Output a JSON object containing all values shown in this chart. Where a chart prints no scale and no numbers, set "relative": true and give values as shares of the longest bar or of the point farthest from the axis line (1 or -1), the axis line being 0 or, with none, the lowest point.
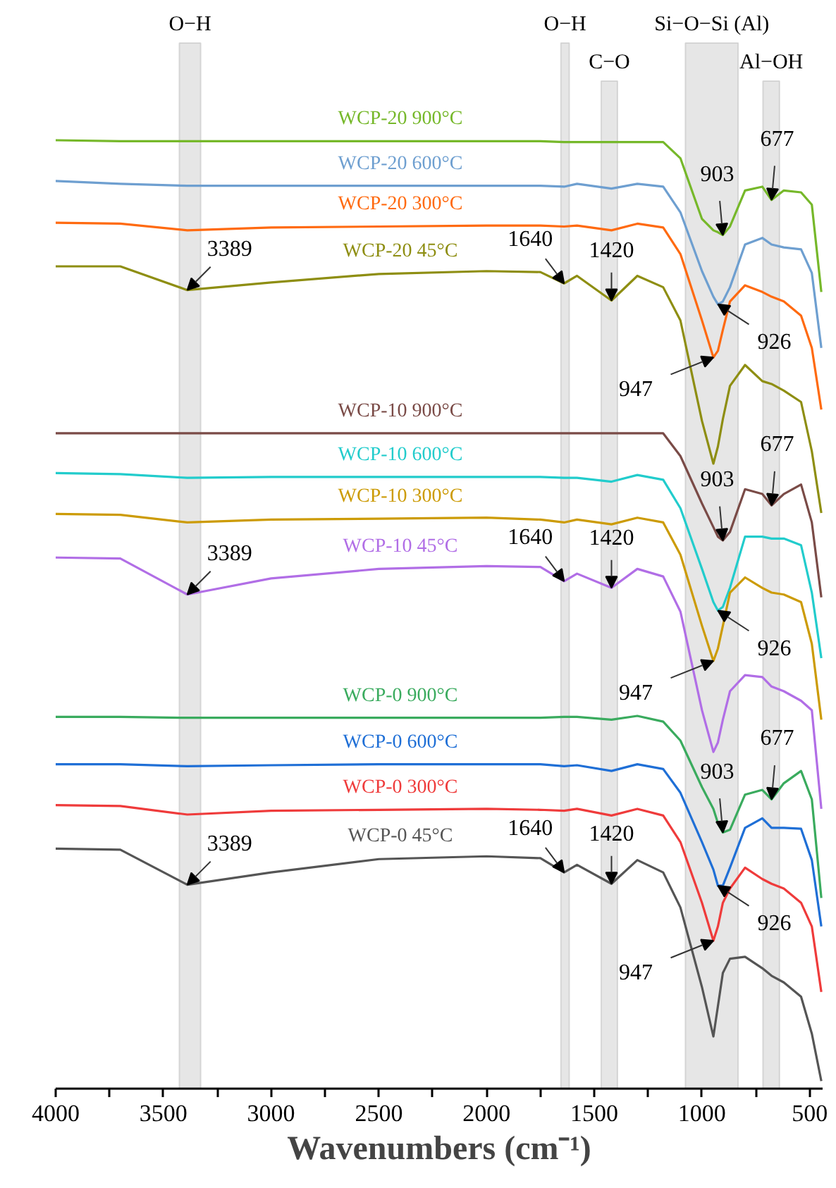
{
  "chart_data": {
    "type": "line",
    "relative": true,
    "xlabel": "Wavenumbers (cm⁻¹)",
    "xlim": [
      4000,
      440
    ],
    "xticks": [
      4000,
      {
        "value": 3750,
        "label": null
      },
      3500,
      {
        "value": 3250,
        "label": null
      },
      3000,
      {
        "value": 2750,
        "label": null
      },
      2500,
      {
        "value": 2250,
        "label": null
      },
      2000,
      {
        "value": 1750,
        "label": null
      },
      1500,
      {
        "value": 1250,
        "label": null
      },
      1000,
      {
        "value": 750,
        "label": null
      },
      500
    ],
    "x": [
      4000,
      3700,
      3389,
      3000,
      2500,
      2000,
      1750,
      1640,
      1580,
      1420,
      1300,
      1180,
      1100,
      1000,
      947,
      926,
      903,
      870,
      800,
      720,
      677,
      620,
      540,
      490,
      446
    ],
    "series": [
      {
        "name": "WCP-20 900°C",
        "color": "#76b82a",
        "values": [
          1.0,
          0.999,
          0.999,
          0.999,
          0.999,
          0.999,
          0.999,
          0.998,
          0.998,
          0.998,
          0.998,
          0.998,
          0.981,
          0.917,
          0.905,
          0.903,
          0.9,
          0.909,
          0.947,
          0.951,
          0.937,
          0.947,
          0.945,
          0.932,
          0.84
        ]
      },
      {
        "name": "WCP-20 600°C",
        "color": "#6e9fd0",
        "values": [
          0.957,
          0.954,
          0.952,
          0.952,
          0.952,
          0.952,
          0.952,
          0.951,
          0.954,
          0.949,
          0.954,
          0.951,
          0.924,
          0.862,
          0.835,
          0.827,
          0.83,
          0.845,
          0.89,
          0.897,
          0.89,
          0.887,
          0.885,
          0.86,
          0.781
        ]
      },
      {
        "name": "WCP-20 300°C",
        "color": "#ff6a10",
        "values": [
          0.913,
          0.912,
          0.905,
          0.908,
          0.909,
          0.91,
          0.91,
          0.909,
          0.91,
          0.905,
          0.912,
          0.908,
          0.88,
          0.81,
          0.771,
          0.778,
          0.8,
          0.83,
          0.847,
          0.84,
          0.835,
          0.83,
          0.815,
          0.781,
          0.716
        ]
      },
      {
        "name": "WCP-20 45°C",
        "color": "#8e8e12",
        "values": [
          0.867,
          0.867,
          0.842,
          0.85,
          0.859,
          0.862,
          0.861,
          0.849,
          0.857,
          0.831,
          0.857,
          0.845,
          0.81,
          0.704,
          0.659,
          0.677,
          0.706,
          0.741,
          0.763,
          0.746,
          0.743,
          0.736,
          0.724,
          0.672,
          0.607
        ]
      },
      {
        "name": "WCP-10 900°C",
        "color": "#7a4b47",
        "values": [
          0.691,
          0.691,
          0.691,
          0.691,
          0.691,
          0.691,
          0.691,
          0.691,
          0.691,
          0.691,
          0.691,
          0.691,
          0.667,
          0.617,
          0.592,
          0.582,
          0.578,
          0.587,
          0.632,
          0.627,
          0.615,
          0.627,
          0.637,
          0.597,
          0.518
        ]
      },
      {
        "name": "WCP-10 600°C",
        "color": "#22cccc",
        "values": [
          0.649,
          0.648,
          0.644,
          0.645,
          0.645,
          0.645,
          0.645,
          0.644,
          0.644,
          0.64,
          0.647,
          0.642,
          0.612,
          0.548,
          0.513,
          0.504,
          0.508,
          0.528,
          0.582,
          0.582,
          0.58,
          0.58,
          0.573,
          0.523,
          0.454
        ]
      },
      {
        "name": "WCP-10 300°C",
        "color": "#cc9b06",
        "values": [
          0.606,
          0.605,
          0.597,
          0.6,
          0.601,
          0.602,
          0.6,
          0.597,
          0.6,
          0.595,
          0.602,
          0.597,
          0.563,
          0.488,
          0.451,
          0.464,
          0.488,
          0.523,
          0.539,
          0.528,
          0.523,
          0.521,
          0.513,
          0.469,
          0.389
        ]
      },
      {
        "name": "WCP-10 45°C",
        "color": "#b16ee6",
        "values": [
          0.56,
          0.559,
          0.521,
          0.538,
          0.548,
          0.551,
          0.55,
          0.535,
          0.543,
          0.528,
          0.548,
          0.54,
          0.503,
          0.399,
          0.355,
          0.365,
          0.389,
          0.419,
          0.436,
          0.434,
          0.424,
          0.419,
          0.409,
          0.399,
          0.295
        ]
      },
      {
        "name": "WCP-0 900°C",
        "color": "#3aab5e",
        "values": [
          0.392,
          0.392,
          0.391,
          0.391,
          0.391,
          0.391,
          0.391,
          0.392,
          0.392,
          0.389,
          0.393,
          0.387,
          0.367,
          0.318,
          0.295,
          0.28,
          0.27,
          0.273,
          0.31,
          0.315,
          0.305,
          0.322,
          0.335,
          0.305,
          0.201
        ]
      },
      {
        "name": "WCP-0 600°C",
        "color": "#1f6fd6",
        "values": [
          0.342,
          0.342,
          0.34,
          0.341,
          0.342,
          0.342,
          0.342,
          0.34,
          0.341,
          0.335,
          0.342,
          0.337,
          0.312,
          0.26,
          0.231,
          0.214,
          0.214,
          0.233,
          0.275,
          0.285,
          0.275,
          0.275,
          0.274,
          0.241,
          0.171
        ]
      },
      {
        "name": "WCP-0 300°C",
        "color": "#ef3b3b",
        "values": [
          0.299,
          0.298,
          0.289,
          0.293,
          0.294,
          0.295,
          0.294,
          0.293,
          0.295,
          0.288,
          0.295,
          0.288,
          0.26,
          0.196,
          0.156,
          0.171,
          0.196,
          0.211,
          0.233,
          0.221,
          0.216,
          0.211,
          0.196,
          0.171,
          0.102
        ]
      },
      {
        "name": "WCP-0 45°C",
        "color": "#555555",
        "values": [
          0.253,
          0.252,
          0.215,
          0.228,
          0.242,
          0.245,
          0.243,
          0.228,
          0.236,
          0.216,
          0.241,
          0.228,
          0.191,
          0.107,
          0.055,
          0.087,
          0.122,
          0.137,
          0.139,
          0.127,
          0.119,
          0.112,
          0.097,
          0.058,
          0.008
        ]
      }
    ],
    "bands": [
      {
        "axis": "x",
        "from": 3426,
        "to": 3327,
        "label": "O−H",
        "color": "#e6e6e6"
      },
      {
        "axis": "x",
        "from": 1655,
        "to": 1616,
        "label": "O−H",
        "color": "#e6e6e6"
      },
      {
        "axis": "x",
        "from": 1468,
        "to": 1392,
        "label": "C−O",
        "color": "#e6e6e6"
      },
      {
        "axis": "x",
        "from": 1077,
        "to": 832,
        "label": "Si−O−Si (Al)",
        "color": "#e6e6e6"
      },
      {
        "axis": "x",
        "from": 717,
        "to": 640,
        "label": "Al−OH",
        "color": "#e6e6e6"
      }
    ],
    "annotations": [
      {
        "text": "3389",
        "x": 3389,
        "y": 0.842
      },
      {
        "text": "3389",
        "x": 3389,
        "y": 0.521
      },
      {
        "text": "3389",
        "x": 3389,
        "y": 0.215
      },
      {
        "text": "1640",
        "x": 1640,
        "y": 0.849
      },
      {
        "text": "1640",
        "x": 1640,
        "y": 0.535
      },
      {
        "text": "1640",
        "x": 1640,
        "y": 0.228
      },
      {
        "text": "1420",
        "x": 1420,
        "y": 0.831
      },
      {
        "text": "1420",
        "x": 1420,
        "y": 0.528
      },
      {
        "text": "1420",
        "x": 1420,
        "y": 0.216
      },
      {
        "text": "903",
        "x": 903,
        "y": 0.9
      },
      {
        "text": "903",
        "x": 903,
        "y": 0.578
      },
      {
        "text": "903",
        "x": 903,
        "y": 0.27
      },
      {
        "text": "677",
        "x": 677,
        "y": 0.937
      },
      {
        "text": "677",
        "x": 677,
        "y": 0.615
      },
      {
        "text": "677",
        "x": 677,
        "y": 0.305
      },
      {
        "text": "926",
        "x": 926,
        "y": 0.827
      },
      {
        "text": "926",
        "x": 926,
        "y": 0.504
      },
      {
        "text": "926",
        "x": 926,
        "y": 0.214
      },
      {
        "text": "947",
        "x": 947,
        "y": 0.771
      },
      {
        "text": "947",
        "x": 947,
        "y": 0.451
      },
      {
        "text": "947",
        "x": 947,
        "y": 0.156
      }
    ]
  }
}
